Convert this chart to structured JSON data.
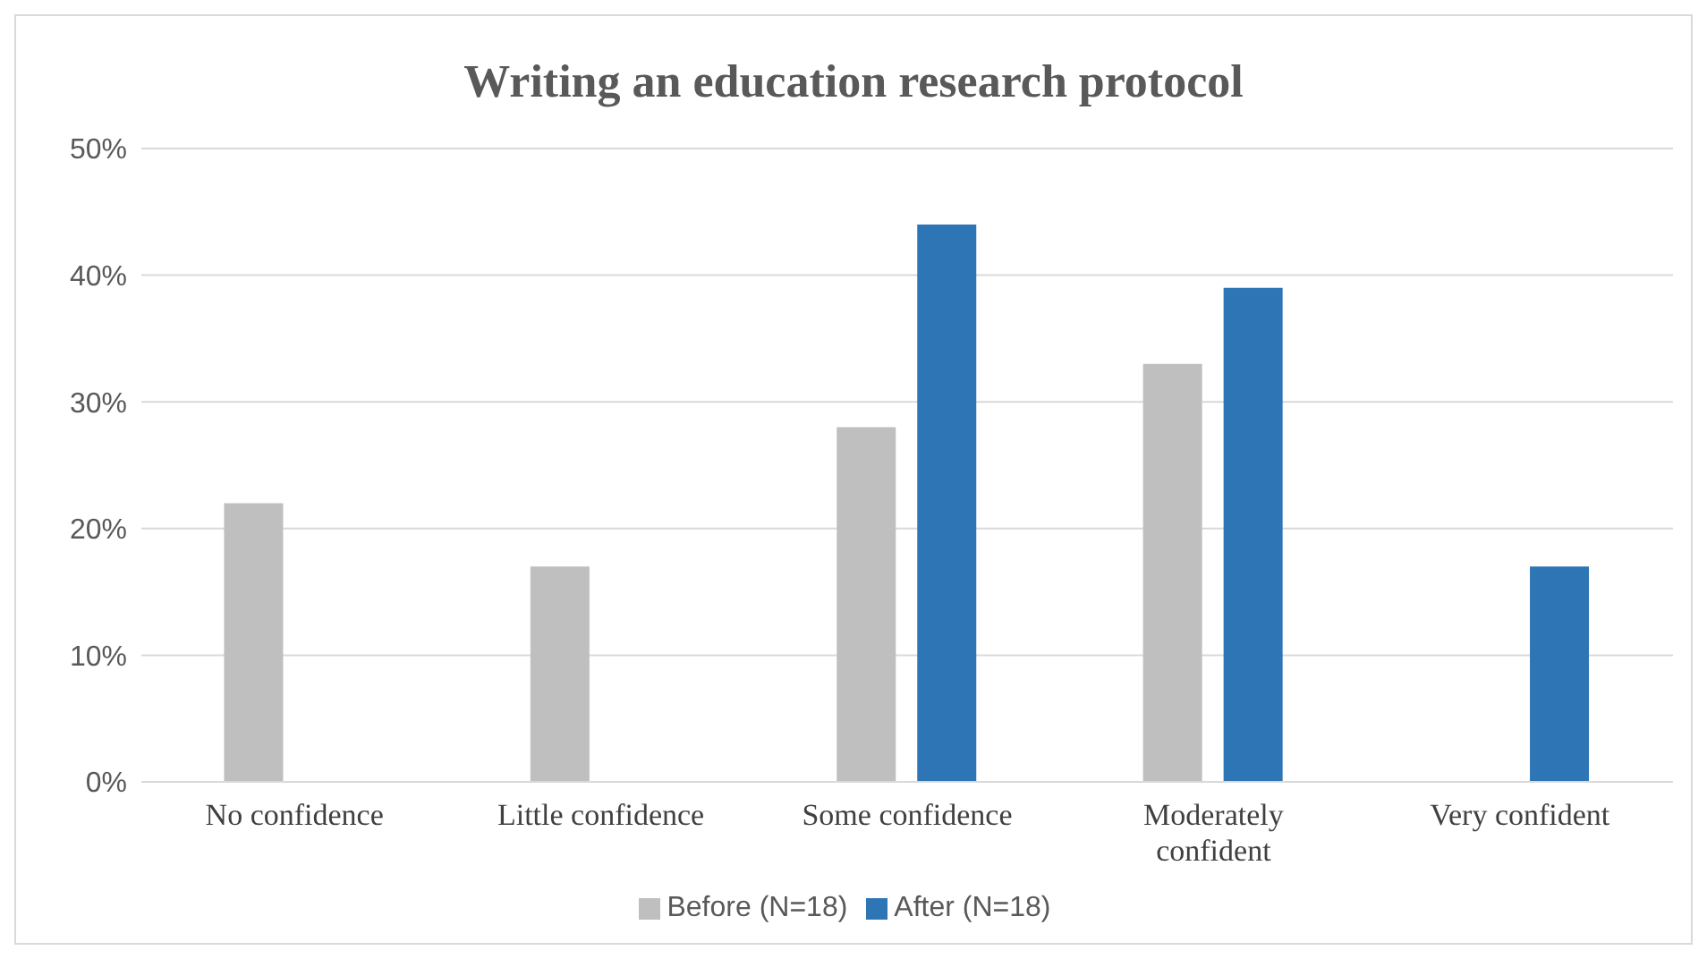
{
  "chart_data": {
    "type": "bar",
    "title": "Writing an education research protocol",
    "categories": [
      "No confidence",
      "Little confidence",
      "Some confidence",
      "Moderately confident",
      "Very confident"
    ],
    "series": [
      {
        "name": "Before (N=18)",
        "color": "#bfbfbf",
        "values": [
          22,
          17,
          28,
          33,
          0
        ]
      },
      {
        "name": "After (N=18)",
        "color": "#2e75b6",
        "values": [
          0,
          0,
          44,
          39,
          17
        ]
      }
    ],
    "ylim": [
      0,
      50
    ],
    "yticks": [
      {
        "value": 0,
        "label": "0%"
      },
      {
        "value": 10,
        "label": "10%"
      },
      {
        "value": 20,
        "label": "20%"
      },
      {
        "value": 30,
        "label": "30%"
      },
      {
        "value": 40,
        "label": "40%"
      },
      {
        "value": 50,
        "label": "50%"
      }
    ],
    "grid": "y",
    "legend": "bottom"
  }
}
